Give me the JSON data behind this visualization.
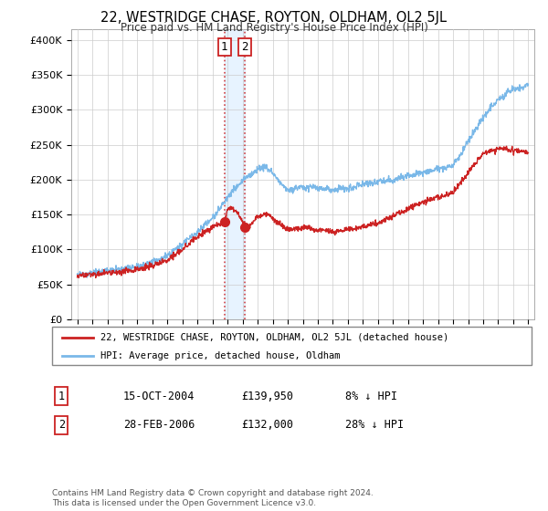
{
  "title": "22, WESTRIDGE CHASE, ROYTON, OLDHAM, OL2 5JL",
  "subtitle": "Price paid vs. HM Land Registry's House Price Index (HPI)",
  "hpi_color": "#7ab8e8",
  "price_color": "#cc2222",
  "ylabel_ticks": [
    "£0",
    "£50K",
    "£100K",
    "£150K",
    "£200K",
    "£250K",
    "£300K",
    "£350K",
    "£400K"
  ],
  "ylabel_values": [
    0,
    50000,
    100000,
    150000,
    200000,
    250000,
    300000,
    350000,
    400000
  ],
  "ylim": [
    0,
    415000
  ],
  "transaction1": {
    "label": "1",
    "date": "15-OCT-2004",
    "price": 139950,
    "pct": "8% ↓ HPI",
    "x": 2004.79
  },
  "transaction2": {
    "label": "2",
    "date": "28-FEB-2006",
    "price": 132000,
    "pct": "28% ↓ HPI",
    "x": 2006.16
  },
  "legend1": "22, WESTRIDGE CHASE, ROYTON, OLDHAM, OL2 5JL (detached house)",
  "legend2": "HPI: Average price, detached house, Oldham",
  "footnote": "Contains HM Land Registry data © Crown copyright and database right 2024.\nThis data is licensed under the Open Government Licence v3.0.",
  "background_color": "#ffffff",
  "grid_color": "#cccccc",
  "shade_color": "#ddeeff"
}
